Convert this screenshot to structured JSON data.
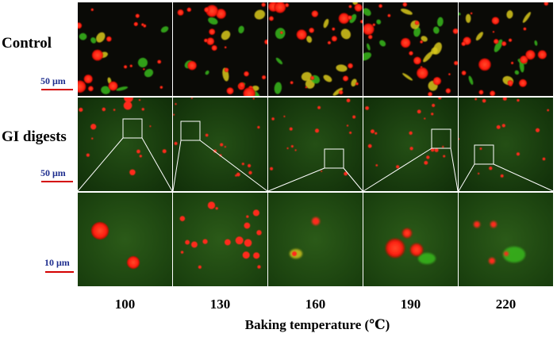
{
  "row_labels": {
    "control": "Control",
    "gi_digests": "GI digests"
  },
  "scale_bars": {
    "row1": "50 μm",
    "row2": "50 μm",
    "row3": "10 μm"
  },
  "x_axis": {
    "title": "Baking temperature (℃)",
    "tick_labels": [
      "100",
      "130",
      "160",
      "190",
      "220"
    ]
  },
  "colors": {
    "red_signal": "#ff2a1a",
    "green_signal": "#39b81f",
    "yellow_overlap": "#d8c81a",
    "background_dark": "#0a0a06",
    "background_green": "#1f4a12",
    "scale_bar": "#d40000",
    "scale_text": "#1f2f8f",
    "zoom_lines": "#ffffff"
  }
}
